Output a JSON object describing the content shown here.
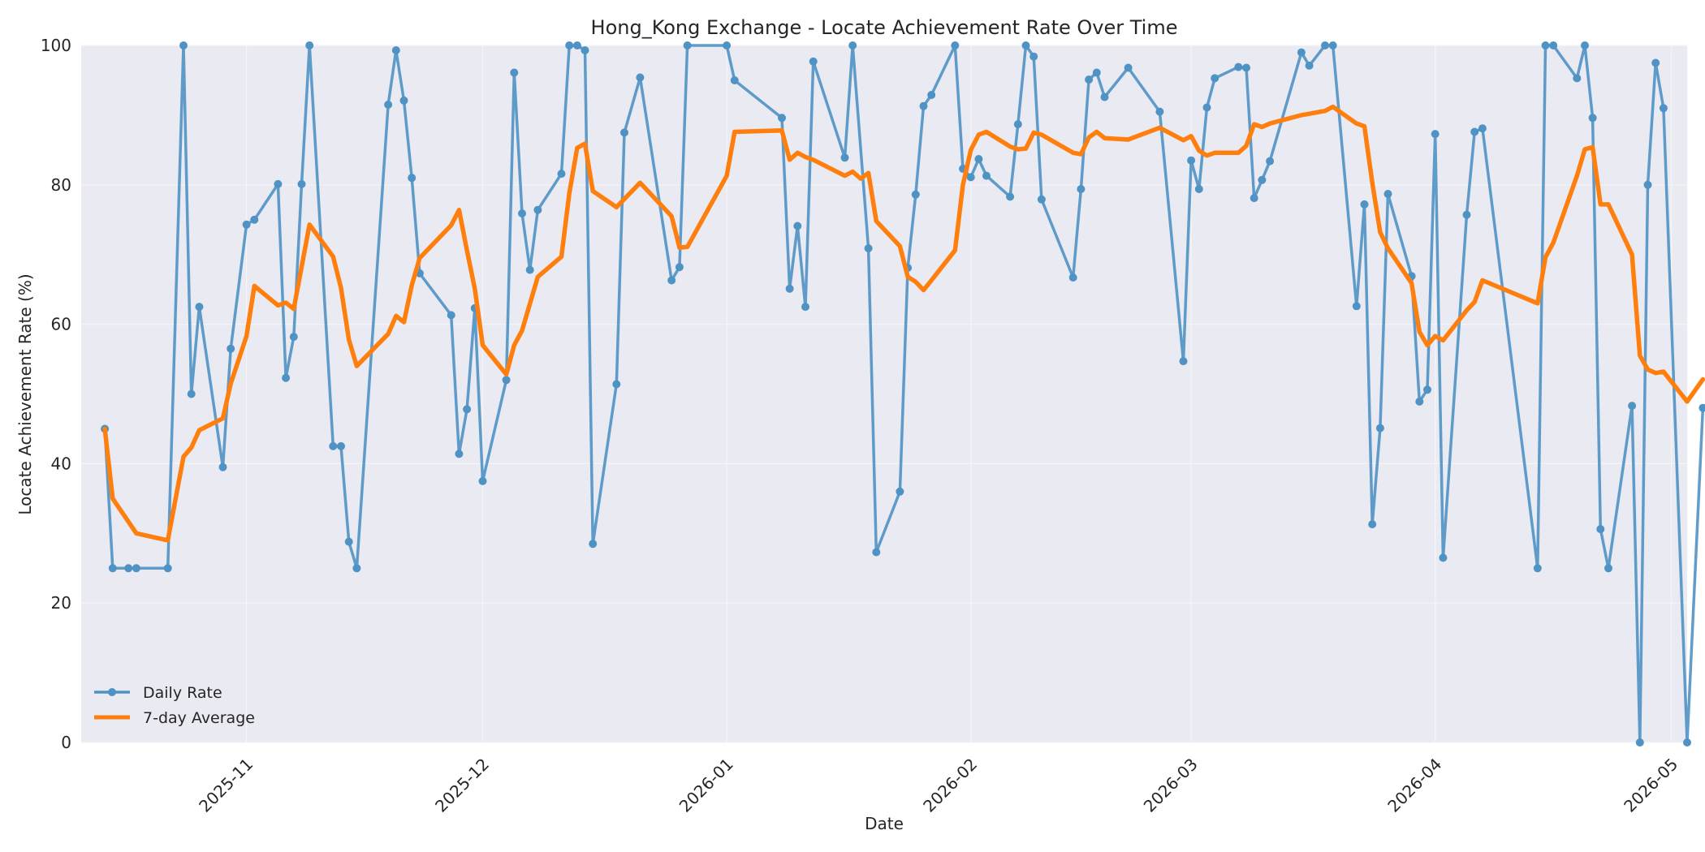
{
  "chart_data": {
    "type": "line",
    "title": "Hong_Kong Exchange - Locate Achievement Rate Over Time",
    "xlabel": "Date",
    "ylabel": "Locate Achievement Rate (%)",
    "ylim": [
      0,
      100
    ],
    "xlim": [
      "2025-10-11",
      "2026-05-03"
    ],
    "yticks": [
      0,
      20,
      40,
      60,
      80,
      100
    ],
    "xticks": [
      "2025-11",
      "2025-12",
      "2026-01",
      "2026-02",
      "2026-03",
      "2026-04",
      "2026-05"
    ],
    "grid": true,
    "legend_position": "bottom-left",
    "series": [
      {
        "name": "Daily Rate",
        "color": "#4f92c4",
        "marker": "circle",
        "points": [
          [
            "2025-10-14",
            45
          ],
          [
            "2025-10-15",
            25
          ],
          [
            "2025-10-17",
            25
          ],
          [
            "2025-10-18",
            25
          ],
          [
            "2025-10-22",
            25
          ],
          [
            "2025-10-24",
            100
          ],
          [
            "2025-10-25",
            50
          ],
          [
            "2025-10-26",
            62.5
          ],
          [
            "2025-10-29",
            39.5
          ],
          [
            "2025-10-30",
            56.5
          ],
          [
            "2025-11-01",
            74.3
          ],
          [
            "2025-11-02",
            75
          ],
          [
            "2025-11-05",
            80.1
          ],
          [
            "2025-11-06",
            52.3
          ],
          [
            "2025-11-07",
            58.2
          ],
          [
            "2025-11-08",
            80.1
          ],
          [
            "2025-11-09",
            100
          ],
          [
            "2025-11-12",
            42.5
          ],
          [
            "2025-11-13",
            42.5
          ],
          [
            "2025-11-14",
            28.8
          ],
          [
            "2025-11-15",
            25
          ],
          [
            "2025-11-19",
            91.5
          ],
          [
            "2025-11-20",
            99.3
          ],
          [
            "2025-11-21",
            92.1
          ],
          [
            "2025-11-22",
            81
          ],
          [
            "2025-11-23",
            67.3
          ],
          [
            "2025-11-27",
            61.3
          ],
          [
            "2025-11-28",
            41.4
          ],
          [
            "2025-11-29",
            47.8
          ],
          [
            "2025-11-30",
            62.3
          ],
          [
            "2025-12-01",
            37.5
          ],
          [
            "2025-12-04",
            52
          ],
          [
            "2025-12-05",
            96.1
          ],
          [
            "2025-12-06",
            75.9
          ],
          [
            "2025-12-07",
            67.8
          ],
          [
            "2025-12-08",
            76.4
          ],
          [
            "2025-12-11",
            81.6
          ],
          [
            "2025-12-12",
            100
          ],
          [
            "2025-12-13",
            100
          ],
          [
            "2025-12-14",
            99.3
          ],
          [
            "2025-12-15",
            28.5
          ],
          [
            "2025-12-18",
            51.4
          ],
          [
            "2025-12-19",
            87.5
          ],
          [
            "2025-12-21",
            95.4
          ],
          [
            "2025-12-25",
            66.3
          ],
          [
            "2025-12-26",
            68.2
          ],
          [
            "2025-12-27",
            100
          ],
          [
            "2026-01-01",
            100
          ],
          [
            "2026-01-02",
            95
          ],
          [
            "2026-01-08",
            89.6
          ],
          [
            "2026-01-09",
            65.1
          ],
          [
            "2026-01-10",
            74.1
          ],
          [
            "2026-01-11",
            62.5
          ],
          [
            "2026-01-12",
            97.7
          ],
          [
            "2026-01-16",
            83.9
          ],
          [
            "2026-01-17",
            100
          ],
          [
            "2026-01-19",
            70.9
          ],
          [
            "2026-01-20",
            27.3
          ],
          [
            "2026-01-23",
            36
          ],
          [
            "2026-01-24",
            68.1
          ],
          [
            "2026-01-25",
            78.6
          ],
          [
            "2026-01-26",
            91.3
          ],
          [
            "2026-01-27",
            92.9
          ],
          [
            "2026-01-30",
            100
          ],
          [
            "2026-01-31",
            82.3
          ],
          [
            "2026-02-01",
            81.1
          ],
          [
            "2026-02-02",
            83.7
          ],
          [
            "2026-02-03",
            81.3
          ],
          [
            "2026-02-06",
            78.3
          ],
          [
            "2026-02-07",
            88.7
          ],
          [
            "2026-02-08",
            100
          ],
          [
            "2026-02-09",
            98.4
          ],
          [
            "2026-02-10",
            77.9
          ],
          [
            "2026-02-14",
            66.7
          ],
          [
            "2026-02-15",
            79.4
          ],
          [
            "2026-02-16",
            95.1
          ],
          [
            "2026-02-17",
            96.1
          ],
          [
            "2026-02-18",
            92.6
          ],
          [
            "2026-02-21",
            96.8
          ],
          [
            "2026-02-25",
            90.5
          ],
          [
            "2026-02-28",
            54.7
          ],
          [
            "2026-03-01",
            83.5
          ],
          [
            "2026-03-02",
            79.4
          ],
          [
            "2026-03-03",
            91.1
          ],
          [
            "2026-03-04",
            95.3
          ],
          [
            "2026-03-07",
            96.9
          ],
          [
            "2026-03-08",
            96.8
          ],
          [
            "2026-03-09",
            78.1
          ],
          [
            "2026-03-10",
            80.7
          ],
          [
            "2026-03-11",
            83.4
          ],
          [
            "2026-03-15",
            99
          ],
          [
            "2026-03-16",
            97.1
          ],
          [
            "2026-03-18",
            100
          ],
          [
            "2026-03-19",
            100
          ],
          [
            "2026-03-22",
            62.6
          ],
          [
            "2026-03-23",
            77.2
          ],
          [
            "2026-03-24",
            31.3
          ],
          [
            "2026-03-25",
            45.1
          ],
          [
            "2026-03-26",
            78.7
          ],
          [
            "2026-03-29",
            66.9
          ],
          [
            "2026-03-30",
            48.9
          ],
          [
            "2026-03-31",
            50.6
          ],
          [
            "2026-04-01",
            87.3
          ],
          [
            "2026-04-02",
            26.5
          ],
          [
            "2026-04-05",
            75.7
          ],
          [
            "2026-04-06",
            87.6
          ],
          [
            "2026-04-07",
            88.1
          ],
          [
            "2026-04-14",
            25
          ],
          [
            "2026-04-15",
            100
          ],
          [
            "2026-04-16",
            100
          ],
          [
            "2026-04-19",
            95.3
          ],
          [
            "2026-04-20",
            100
          ],
          [
            "2026-04-21",
            89.6
          ],
          [
            "2026-04-22",
            30.6
          ],
          [
            "2026-04-23",
            25
          ],
          [
            "2026-04-26",
            48.3
          ],
          [
            "2026-04-27",
            0
          ],
          [
            "2026-04-28",
            80
          ],
          [
            "2026-04-29",
            97.5
          ],
          [
            "2026-04-30",
            91
          ],
          [
            "2026-05-03",
            0
          ],
          [
            "2026-05-05",
            48
          ]
        ]
      },
      {
        "name": "7-day Average",
        "color": "#ff7f0e",
        "marker": "none",
        "points": [
          [
            "2025-10-14",
            45
          ],
          [
            "2025-10-15",
            35
          ],
          [
            "2025-10-18",
            30
          ],
          [
            "2025-10-22",
            29
          ],
          [
            "2025-10-24",
            41
          ],
          [
            "2025-10-25",
            42.3
          ],
          [
            "2025-10-26",
            44.8
          ],
          [
            "2025-10-29",
            46.5
          ],
          [
            "2025-10-30",
            51.5
          ],
          [
            "2025-11-01",
            58.3
          ],
          [
            "2025-11-02",
            65.5
          ],
          [
            "2025-11-05",
            62.7
          ],
          [
            "2025-11-06",
            63.1
          ],
          [
            "2025-11-07",
            62.2
          ],
          [
            "2025-11-09",
            74.3
          ],
          [
            "2025-11-12",
            69.7
          ],
          [
            "2025-11-13",
            65.2
          ],
          [
            "2025-11-14",
            57.8
          ],
          [
            "2025-11-15",
            54
          ],
          [
            "2025-11-19",
            58.6
          ],
          [
            "2025-11-20",
            61.2
          ],
          [
            "2025-11-21",
            60.3
          ],
          [
            "2025-11-22",
            65.6
          ],
          [
            "2025-11-23",
            69.5
          ],
          [
            "2025-11-27",
            74.2
          ],
          [
            "2025-11-28",
            76.4
          ],
          [
            "2025-11-29",
            70.6
          ],
          [
            "2025-11-30",
            65.1
          ],
          [
            "2025-12-01",
            57
          ],
          [
            "2025-12-04",
            52.8
          ],
          [
            "2025-12-05",
            57
          ],
          [
            "2025-12-06",
            59.1
          ],
          [
            "2025-12-08",
            66.8
          ],
          [
            "2025-12-11",
            69.7
          ],
          [
            "2025-12-12",
            78.8
          ],
          [
            "2025-12-13",
            85.3
          ],
          [
            "2025-12-14",
            85.9
          ],
          [
            "2025-12-15",
            79.1
          ],
          [
            "2025-12-18",
            76.8
          ],
          [
            "2025-12-21",
            80.3
          ],
          [
            "2025-12-25",
            75.5
          ],
          [
            "2025-12-26",
            71
          ],
          [
            "2025-12-27",
            71.1
          ],
          [
            "2026-01-01",
            81.3
          ],
          [
            "2026-01-02",
            87.6
          ],
          [
            "2026-01-08",
            87.8
          ],
          [
            "2026-01-09",
            83.6
          ],
          [
            "2026-01-10",
            84.6
          ],
          [
            "2026-01-11",
            84
          ],
          [
            "2026-01-12",
            83.6
          ],
          [
            "2026-01-16",
            81.3
          ],
          [
            "2026-01-17",
            81.9
          ],
          [
            "2026-01-18",
            80.9
          ],
          [
            "2026-01-19",
            81.7
          ],
          [
            "2026-01-20",
            74.8
          ],
          [
            "2026-01-23",
            71.2
          ],
          [
            "2026-01-24",
            66.8
          ],
          [
            "2026-01-25",
            66.1
          ],
          [
            "2026-01-26",
            64.9
          ],
          [
            "2026-01-27",
            66.3
          ],
          [
            "2026-01-30",
            70.6
          ],
          [
            "2026-01-31",
            80
          ],
          [
            "2026-02-01",
            85
          ],
          [
            "2026-02-02",
            87.2
          ],
          [
            "2026-02-03",
            87.6
          ],
          [
            "2026-02-06",
            85.5
          ],
          [
            "2026-02-07",
            85.1
          ],
          [
            "2026-02-08",
            85.2
          ],
          [
            "2026-02-09",
            87.5
          ],
          [
            "2026-02-10",
            87.2
          ],
          [
            "2026-02-14",
            84.6
          ],
          [
            "2026-02-15",
            84.4
          ],
          [
            "2026-02-16",
            86.8
          ],
          [
            "2026-02-17",
            87.6
          ],
          [
            "2026-02-18",
            86.7
          ],
          [
            "2026-02-21",
            86.5
          ],
          [
            "2026-02-25",
            88.2
          ],
          [
            "2026-02-28",
            86.4
          ],
          [
            "2026-03-01",
            87
          ],
          [
            "2026-03-02",
            84.9
          ],
          [
            "2026-03-03",
            84.2
          ],
          [
            "2026-03-04",
            84.6
          ],
          [
            "2026-03-07",
            84.6
          ],
          [
            "2026-03-08",
            85.6
          ],
          [
            "2026-03-09",
            88.7
          ],
          [
            "2026-03-10",
            88.3
          ],
          [
            "2026-03-11",
            88.8
          ],
          [
            "2026-03-15",
            90
          ],
          [
            "2026-03-18",
            90.6
          ],
          [
            "2026-03-19",
            91.2
          ],
          [
            "2026-03-22",
            88.8
          ],
          [
            "2026-03-23",
            88.4
          ],
          [
            "2026-03-24",
            80.3
          ],
          [
            "2026-03-25",
            73.2
          ],
          [
            "2026-03-26",
            70.9
          ],
          [
            "2026-03-29",
            65.9
          ],
          [
            "2026-03-30",
            58.9
          ],
          [
            "2026-03-31",
            57
          ],
          [
            "2026-04-01",
            58.3
          ],
          [
            "2026-04-02",
            57.7
          ],
          [
            "2026-04-05",
            62
          ],
          [
            "2026-04-06",
            63.2
          ],
          [
            "2026-04-07",
            66.3
          ],
          [
            "2026-04-14",
            63
          ],
          [
            "2026-04-15",
            69.6
          ],
          [
            "2026-04-16",
            71.7
          ],
          [
            "2026-04-19",
            81.3
          ],
          [
            "2026-04-20",
            85.1
          ],
          [
            "2026-04-21",
            85.4
          ],
          [
            "2026-04-22",
            77.2
          ],
          [
            "2026-04-23",
            77.2
          ],
          [
            "2026-04-26",
            70
          ],
          [
            "2026-04-27",
            55.5
          ],
          [
            "2026-04-28",
            53.5
          ],
          [
            "2026-04-29",
            53
          ],
          [
            "2026-04-30",
            53.2
          ],
          [
            "2026-05-03",
            48.9
          ],
          [
            "2026-05-05",
            52.1
          ]
        ]
      }
    ]
  }
}
